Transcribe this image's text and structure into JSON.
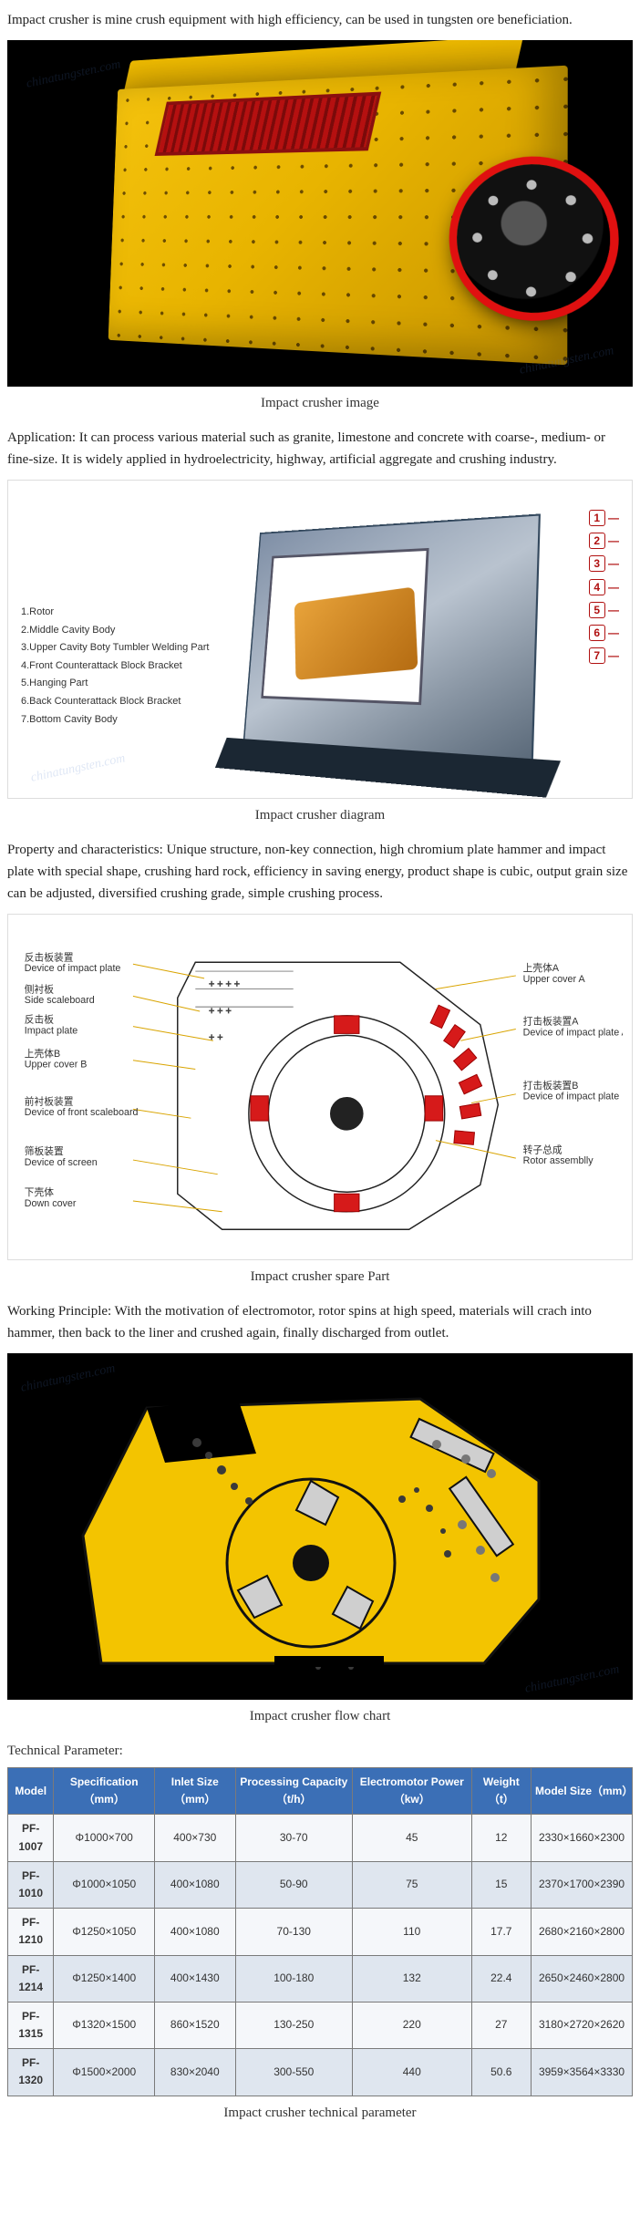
{
  "intro": "Impact crusher is mine crush equipment with high efficiency, can be used in tungsten ore beneficiation.",
  "captions": {
    "fig1": "Impact crusher image",
    "fig2": "Impact crusher diagram",
    "fig3": "Impact crusher spare Part",
    "fig4": "Impact crusher flow chart",
    "table": "Impact crusher technical parameter"
  },
  "application": "Application: It can process various material such as granite, limestone and concrete with coarse-, medium- or fine-size. It is widely applied in hydroelectricity, highway, artificial aggregate and crushing industry.",
  "diagram_legend": [
    "1.Rotor",
    "2.Middle Cavity Body",
    "3.Upper Cavity Boty Tumbler Welding Part",
    "4.Front Counterattack Block Bracket",
    "5.Hanging Part",
    "6.Back Counterattack Block Bracket",
    "7.Bottom Cavity Body"
  ],
  "diagram_callouts": [
    "1",
    "2",
    "3",
    "4",
    "5",
    "6",
    "7"
  ],
  "property": "Property and characteristics: Unique structure, non-key connection, high chromium plate hammer and impact plate with special shape, crushing hard rock, efficiency in saving energy, product shape is cubic, output grain size can be adjusted, diversified crushing grade, simple crushing process.",
  "spare_labels": {
    "left": [
      {
        "cn": "反击板装置",
        "en": "Device of impact plate"
      },
      {
        "cn": "侧衬板",
        "en": "Side scaleboard"
      },
      {
        "cn": "反击板",
        "en": "Impact plate"
      },
      {
        "cn": "上壳体B",
        "en": "Upper cover B"
      },
      {
        "cn": "前衬板装置",
        "en": "Device of front scaleboard"
      },
      {
        "cn": "筛板装置",
        "en": "Device of screen"
      },
      {
        "cn": "下壳体",
        "en": "Down cover"
      }
    ],
    "right": [
      {
        "cn": "上壳体A",
        "en": "Upper cover A"
      },
      {
        "cn": "打击板装置A",
        "en": "Device of impact plate A"
      },
      {
        "cn": "打击板装置B",
        "en": "Device of impact plate B"
      },
      {
        "cn": "转子总成",
        "en": "Rotor assemblly"
      }
    ]
  },
  "spare_style": {
    "accent_color": "#d61a1a",
    "line_color": "#222",
    "fill_color": "#ffffff"
  },
  "principle": "Working Principle: With the motivation of electromotor, rotor spins at high speed, materials will crach into hammer, then back to the liner and crushed again, finally discharged from outlet.",
  "flow_style": {
    "bg_color": "#000000",
    "body_color": "#f3c400",
    "line_color": "#1a1a1a",
    "material_color": "#3a3a3a"
  },
  "tech_param_label": "Technical Parameter:",
  "table": {
    "header_bg": "#3b6fb6",
    "row_alt_bg": "#dfe6ef",
    "row_bg": "#f5f7fa",
    "border_color": "#7a7a7a",
    "columns": [
      "Model",
      "Specification（mm）",
      "Inlet Size（mm）",
      "Processing Capacity（t/h）",
      "Electromotor Power（kw）",
      "Weight（t）",
      "Model Size（mm）"
    ],
    "rows": [
      [
        "PF-1007",
        "Φ1000×700",
        "400×730",
        "30-70",
        "45",
        "12",
        "2330×1660×2300"
      ],
      [
        "PF-1010",
        "Φ1000×1050",
        "400×1080",
        "50-90",
        "75",
        "15",
        "2370×1700×2390"
      ],
      [
        "PF-1210",
        "Φ1250×1050",
        "400×1080",
        "70-130",
        "110",
        "17.7",
        "2680×2160×2800"
      ],
      [
        "PF-1214",
        "Φ1250×1400",
        "400×1430",
        "100-180",
        "132",
        "22.4",
        "2650×2460×2800"
      ],
      [
        "PF-1315",
        "Φ1320×1500",
        "860×1520",
        "130-250",
        "220",
        "27",
        "3180×2720×2620"
      ],
      [
        "PF-1320",
        "Φ1500×2000",
        "830×2040",
        "300-550",
        "440",
        "50.6",
        "3959×3564×3330"
      ]
    ]
  },
  "colors": {
    "machine_yellow": "#f4c20d",
    "machine_red": "#b51010",
    "wheel_ring": "#e01010"
  }
}
